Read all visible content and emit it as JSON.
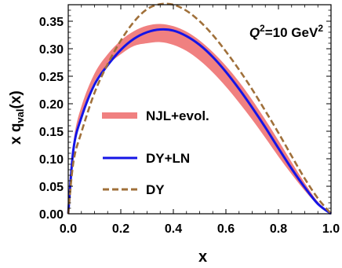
{
  "chart_data": {
    "type": "line",
    "xlabel": "x",
    "ylabel": {
      "main": "x q",
      "sub": "val",
      "tail": "(x)"
    },
    "xlim": [
      0.0,
      1.0
    ],
    "ylim": [
      0.0,
      0.38
    ],
    "x_ticks": [
      "0.0",
      "0.2",
      "0.4",
      "0.6",
      "0.8",
      "1.0"
    ],
    "y_ticks": [
      "0.00",
      "0.05",
      "0.10",
      "0.15",
      "0.20",
      "0.25",
      "0.30",
      "0.35"
    ],
    "grid": false,
    "annotation": {
      "prefix": "Q",
      "sup": "2",
      "mid": "=10 GeV",
      "sup2": "2"
    },
    "legend_position": "left-center",
    "series": [
      {
        "name": "NJL+evol.",
        "style": "band",
        "color": "#f08080",
        "x": [
          0.0,
          0.02,
          0.05,
          0.1,
          0.15,
          0.2,
          0.25,
          0.3,
          0.35,
          0.4,
          0.45,
          0.5,
          0.55,
          0.6,
          0.65,
          0.7,
          0.75,
          0.8,
          0.85,
          0.9,
          0.95,
          1.0
        ],
        "lower": [
          0.0,
          0.12,
          0.18,
          0.24,
          0.27,
          0.29,
          0.305,
          0.31,
          0.312,
          0.307,
          0.296,
          0.279,
          0.257,
          0.231,
          0.202,
          0.171,
          0.138,
          0.104,
          0.072,
          0.042,
          0.016,
          0.0
        ],
        "upper": [
          0.0,
          0.13,
          0.195,
          0.255,
          0.29,
          0.315,
          0.332,
          0.342,
          0.345,
          0.341,
          0.331,
          0.315,
          0.294,
          0.269,
          0.24,
          0.207,
          0.171,
          0.133,
          0.094,
          0.056,
          0.022,
          0.0
        ]
      },
      {
        "name": "DY+LN",
        "style": "solid",
        "color": "#1414e6",
        "x": [
          0.0,
          0.02,
          0.05,
          0.1,
          0.15,
          0.2,
          0.25,
          0.3,
          0.35,
          0.4,
          0.45,
          0.5,
          0.55,
          0.6,
          0.65,
          0.7,
          0.75,
          0.8,
          0.85,
          0.9,
          0.95,
          1.0
        ],
        "values": [
          0.0,
          0.118,
          0.175,
          0.235,
          0.27,
          0.298,
          0.318,
          0.33,
          0.335,
          0.333,
          0.323,
          0.307,
          0.285,
          0.258,
          0.227,
          0.193,
          0.157,
          0.119,
          0.082,
          0.048,
          0.018,
          0.0
        ]
      },
      {
        "name": "DY",
        "style": "dashed",
        "color": "#a0703a",
        "x": [
          0.0,
          0.02,
          0.05,
          0.1,
          0.15,
          0.2,
          0.25,
          0.3,
          0.35,
          0.4,
          0.45,
          0.5,
          0.55,
          0.6,
          0.65,
          0.7,
          0.75,
          0.8,
          0.85,
          0.9,
          0.95,
          1.0
        ],
        "values": [
          0.0,
          0.095,
          0.148,
          0.22,
          0.272,
          0.315,
          0.349,
          0.372,
          0.381,
          0.38,
          0.369,
          0.35,
          0.325,
          0.295,
          0.262,
          0.226,
          0.187,
          0.147,
          0.105,
          0.064,
          0.028,
          0.0
        ]
      }
    ]
  }
}
